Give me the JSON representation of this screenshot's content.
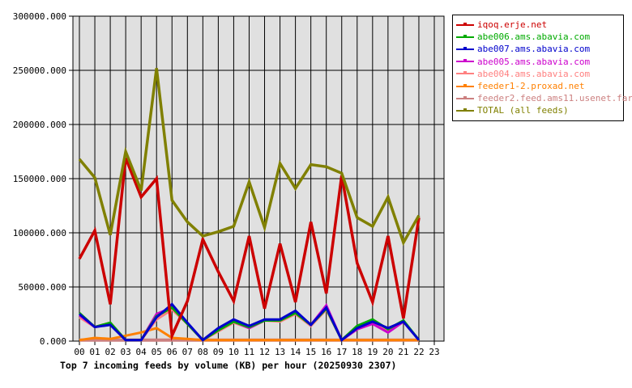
{
  "chart_data": {
    "type": "line",
    "title": "Top 7 incoming feeds by volume (KB) per hour (20250930 2307)",
    "xlabel": "",
    "ylabel": "",
    "ylim": [
      0,
      300000
    ],
    "grid": true,
    "legend_position": "right",
    "yticks": [
      "0.000",
      "50000.000",
      "100000.000",
      "150000.000",
      "200000.000",
      "250000.000",
      "300000.000"
    ],
    "categories": [
      "00",
      "01",
      "02",
      "03",
      "04",
      "05",
      "06",
      "07",
      "08",
      "09",
      "10",
      "11",
      "12",
      "13",
      "14",
      "15",
      "16",
      "17",
      "18",
      "19",
      "20",
      "21",
      "22",
      "23"
    ],
    "series": [
      {
        "name": "iqoq.erje.net",
        "color": "#cc0000",
        "values": [
          76000,
          102000,
          34000,
          169000,
          133000,
          150000,
          5000,
          37000,
          94000,
          64000,
          37000,
          97000,
          30000,
          90000,
          36000,
          110000,
          44000,
          153000,
          72000,
          36000,
          97000,
          21000,
          114000
        ]
      },
      {
        "name": "abe006.ams.abavia.com",
        "color": "#00aa00",
        "values": [
          26000,
          13000,
          17000,
          1000,
          1000,
          23000,
          31000,
          16000,
          1000,
          10000,
          18000,
          13000,
          19000,
          19000,
          26000,
          15000,
          30000,
          1000,
          14000,
          20000,
          11000,
          19000,
          1000
        ]
      },
      {
        "name": "abe007.ams.abavia.com",
        "color": "#0000cc",
        "values": [
          25000,
          13000,
          15000,
          1000,
          1000,
          22000,
          34000,
          17000,
          1000,
          12000,
          20000,
          14000,
          20000,
          20000,
          28000,
          15000,
          31000,
          1000,
          12000,
          18000,
          12000,
          18000,
          1000
        ]
      },
      {
        "name": "abe005.ams.abavia.com",
        "color": "#cc00cc",
        "values": [
          24000,
          13000,
          16000,
          1000,
          1000,
          25000,
          31000,
          16000,
          1000,
          10000,
          18000,
          12000,
          19000,
          19000,
          27000,
          15000,
          33000,
          1000,
          11000,
          16000,
          8000,
          18000,
          1000
        ]
      },
      {
        "name": "abe004.ams.abavia.com",
        "color": "#ff8080",
        "values": [
          22000,
          13000,
          17000,
          1000,
          1000,
          20000,
          29000,
          16000,
          1000,
          9000,
          17000,
          12000,
          19000,
          18000,
          25000,
          14000,
          29000,
          1000,
          11000,
          17000,
          10000,
          18000,
          1000
        ]
      },
      {
        "name": "feeder1-2.proxad.net",
        "color": "#ff8000",
        "values": [
          1000,
          3000,
          2000,
          5000,
          8000,
          12000,
          3000,
          2000,
          1000,
          1000,
          1000,
          1000,
          1000,
          1000,
          1000,
          1000,
          1000,
          1000,
          1000,
          1000,
          1000,
          1000,
          1000
        ]
      },
      {
        "name": "feeder2.feed.ams11.usenet.farm",
        "color": "#cc8080",
        "values": [
          1000,
          1000,
          1000,
          1000,
          1000,
          1000,
          1000,
          1000,
          1000,
          1000,
          1000,
          1000,
          1000,
          1000,
          1000,
          1000,
          1000,
          1000,
          1000,
          1000,
          1000,
          1000,
          1000
        ]
      },
      {
        "name": "TOTAL (all feeds)",
        "color": "#808000",
        "values": [
          168000,
          151000,
          98000,
          175000,
          139000,
          252000,
          130000,
          110000,
          97000,
          101000,
          106000,
          147000,
          105000,
          164000,
          141000,
          163000,
          161000,
          155000,
          114000,
          106000,
          133000,
          91000,
          116000
        ]
      }
    ]
  },
  "legend": {
    "items": [
      {
        "label": "iqoq.erje.net",
        "color": "#cc0000"
      },
      {
        "label": "abe006.ams.abavia.com",
        "color": "#00aa00"
      },
      {
        "label": "abe007.ams.abavia.com",
        "color": "#0000cc"
      },
      {
        "label": "abe005.ams.abavia.com",
        "color": "#cc00cc"
      },
      {
        "label": "abe004.ams.abavia.com",
        "color": "#ff8080"
      },
      {
        "label": "feeder1-2.proxad.net",
        "color": "#ff8000"
      },
      {
        "label": "feeder2.feed.ams11.usenet.farm",
        "color": "#cc8080"
      },
      {
        "label": "TOTAL (all feeds)",
        "color": "#808000"
      }
    ]
  }
}
